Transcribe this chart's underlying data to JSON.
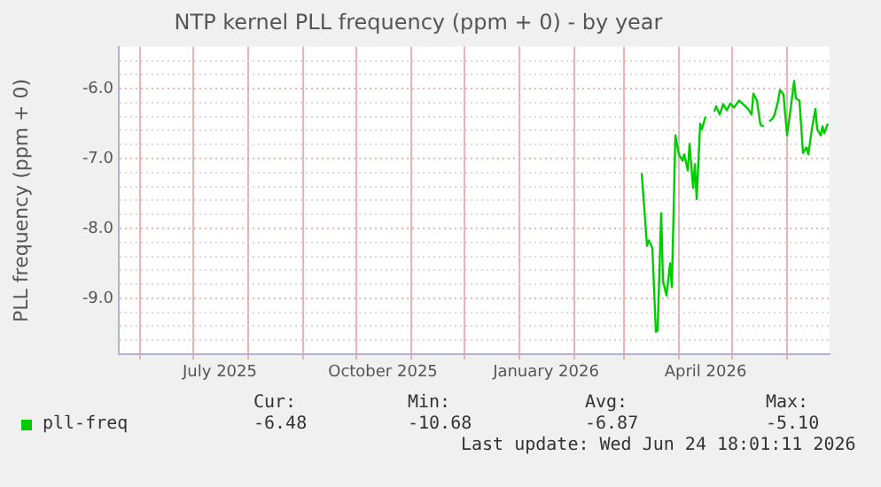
{
  "chart_data": {
    "type": "line",
    "title": "NTP kernel PLL frequency (ppm + 0) - by year",
    "ylabel": "PLL frequency (ppm + 0)",
    "x": [
      "2026-03-11",
      "2026-03-14",
      "2026-03-15",
      "2026-03-17",
      "2026-03-19",
      "2026-03-20",
      "2026-03-22",
      "2026-03-23",
      "2026-03-25",
      "2026-03-27",
      "2026-03-28",
      "2026-03-30",
      "2026-04-01",
      "2026-04-03",
      "2026-04-04",
      "2026-04-06",
      "2026-04-07",
      "2026-04-09",
      "2026-04-10",
      "2026-04-11",
      "2026-04-13",
      "2026-04-14",
      "2026-04-16",
      "2026-04-18",
      "2026-04-21",
      "2026-04-22",
      "2026-04-24",
      "2026-04-26",
      "2026-04-28",
      "2026-04-30",
      "2026-05-02",
      "2026-05-05",
      "2026-05-08",
      "2026-05-10",
      "2026-05-12",
      "2026-05-13",
      "2026-05-15",
      "2026-05-17",
      "2026-05-19",
      "2026-05-20",
      "2026-05-22",
      "2026-05-24",
      "2026-05-25",
      "2026-05-27",
      "2026-05-28",
      "2026-05-30",
      "2026-06-01",
      "2026-06-03",
      "2026-06-05",
      "2026-06-06",
      "2026-06-08",
      "2026-06-10",
      "2026-06-12",
      "2026-06-13",
      "2026-06-15",
      "2026-06-17",
      "2026-06-18",
      "2026-06-20",
      "2026-06-21",
      "2026-06-22",
      "2026-06-24"
    ],
    "series": [
      {
        "name": "pll-freq",
        "color": "#00cc00",
        "values": [
          -7.21,
          -8.25,
          -8.17,
          -8.28,
          -9.48,
          -9.46,
          -7.78,
          -8.75,
          -8.96,
          -8.5,
          -8.84,
          -6.67,
          -6.94,
          -7.03,
          -6.94,
          -7.17,
          -6.79,
          -7.42,
          -7.08,
          -7.58,
          -6.5,
          -6.58,
          -6.4,
          null,
          -6.33,
          -6.25,
          -6.37,
          -6.22,
          -6.31,
          -6.21,
          -6.27,
          -6.17,
          -6.24,
          -6.29,
          -6.37,
          -6.07,
          -6.17,
          -6.52,
          -6.54,
          null,
          -6.47,
          -6.42,
          -6.37,
          -6.17,
          -6.02,
          -6.08,
          -6.67,
          -6.29,
          -5.89,
          -6.14,
          -6.17,
          -6.92,
          -6.84,
          -6.94,
          -6.58,
          -6.29,
          -6.58,
          -6.67,
          -6.54,
          -6.64,
          -6.5
        ]
      }
    ],
    "xlim": [
      "2025-05-20",
      "2026-06-25"
    ],
    "xticks": [
      {
        "value": "2025-06-01",
        "label": null
      },
      {
        "value": "2025-07-01",
        "label": null
      },
      {
        "value": "2025-07-16",
        "label": "July 2025"
      },
      {
        "value": "2025-08-01",
        "label": null
      },
      {
        "value": "2025-09-01",
        "label": null
      },
      {
        "value": "2025-10-01",
        "label": null
      },
      {
        "value": "2025-10-16",
        "label": "October 2025"
      },
      {
        "value": "2025-11-01",
        "label": null
      },
      {
        "value": "2025-12-01",
        "label": null
      },
      {
        "value": "2026-01-01",
        "label": null
      },
      {
        "value": "2026-01-16",
        "label": "January 2026"
      },
      {
        "value": "2026-02-01",
        "label": null
      },
      {
        "value": "2026-03-01",
        "label": null
      },
      {
        "value": "2026-04-01",
        "label": null
      },
      {
        "value": "2026-04-16",
        "label": "April 2026"
      },
      {
        "value": "2026-05-01",
        "label": null
      },
      {
        "value": "2026-06-01",
        "label": null
      }
    ],
    "ylim": [
      -9.8,
      -5.4
    ],
    "yticks": [
      {
        "value": -9.6,
        "label": null
      },
      {
        "value": -9.4,
        "label": null
      },
      {
        "value": -9.2,
        "label": null
      },
      {
        "value": -9,
        "label": "-9.0"
      },
      {
        "value": -8.8,
        "label": null
      },
      {
        "value": -8.6,
        "label": null
      },
      {
        "value": -8.4,
        "label": null
      },
      {
        "value": -8.2,
        "label": null
      },
      {
        "value": -8,
        "label": "-8.0"
      },
      {
        "value": -7.8,
        "label": null
      },
      {
        "value": -7.6,
        "label": null
      },
      {
        "value": -7.4,
        "label": null
      },
      {
        "value": -7.2,
        "label": null
      },
      {
        "value": -7,
        "label": "-7.0"
      },
      {
        "value": -6.8,
        "label": null
      },
      {
        "value": -6.6,
        "label": null
      },
      {
        "value": -6.4,
        "label": null
      },
      {
        "value": -6.2,
        "label": null
      },
      {
        "value": -6,
        "label": "-6.0"
      },
      {
        "value": -5.8,
        "label": null
      },
      {
        "value": -5.6,
        "label": null
      }
    ],
    "grid": true,
    "legend": "bottom left",
    "marker": "none",
    "line_style": "solid",
    "annotations": [
      "Cur:",
      "Min:",
      "Avg:",
      "Max:",
      "-6.48",
      "-10.68",
      "-6.87",
      "-5.10",
      "Last update: Wed Jun 24 18:01:11 2026"
    ]
  }
}
